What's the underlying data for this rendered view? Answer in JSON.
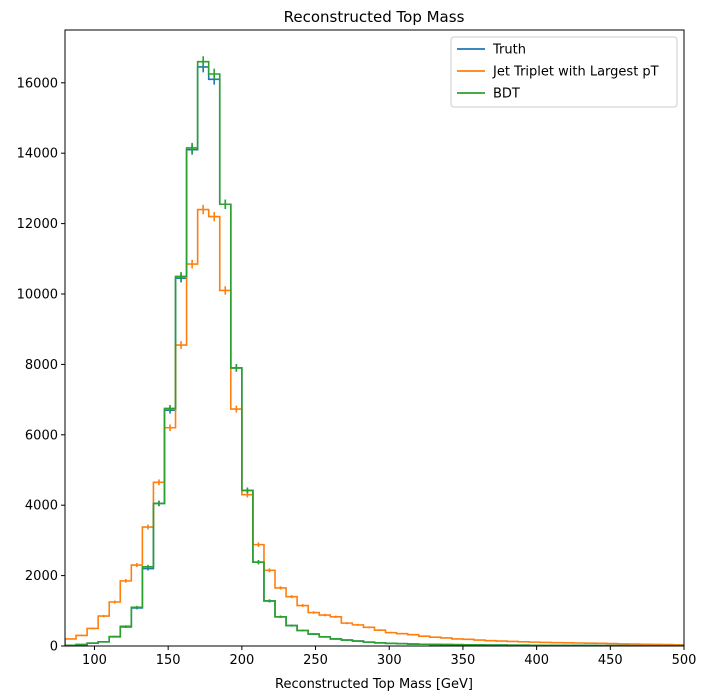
{
  "chart_data": {
    "type": "histogram",
    "title": "Reconstructed Top Mass",
    "xlabel": "Reconstructed Top Mass [GeV]",
    "ylabel": "",
    "xlim": [
      80,
      500
    ],
    "ylim": [
      0,
      17500
    ],
    "x_ticks": [
      100,
      150,
      200,
      250,
      300,
      350,
      400,
      450,
      500
    ],
    "y_ticks": [
      0,
      2000,
      4000,
      6000,
      8000,
      10000,
      12000,
      14000,
      16000
    ],
    "legend_position": "top-right",
    "bins": {
      "start": 80,
      "width": 7.5,
      "count": 56
    },
    "series": [
      {
        "name": "Truth",
        "color": "#1f77b4",
        "values": [
          20,
          40,
          80,
          120,
          260,
          540,
          1080,
          2200,
          4050,
          6700,
          10450,
          14100,
          16450,
          16100,
          12550,
          7900,
          4420,
          2380,
          1280,
          830,
          580,
          440,
          340,
          260,
          200,
          170,
          140,
          110,
          90,
          75,
          65,
          55,
          50,
          45,
          40,
          36,
          33,
          30,
          28,
          26,
          24,
          22,
          20,
          19,
          18,
          17,
          16,
          15,
          14,
          13,
          12,
          11,
          10,
          10,
          9,
          9
        ]
      },
      {
        "name": "Jet Triplet with Largest pT",
        "color": "#ff7f0e",
        "values": [
          200,
          300,
          500,
          850,
          1250,
          1850,
          2300,
          3380,
          4650,
          6200,
          8550,
          10850,
          12400,
          12200,
          10100,
          6730,
          4300,
          2880,
          2150,
          1650,
          1400,
          1150,
          950,
          880,
          830,
          650,
          600,
          530,
          450,
          380,
          350,
          320,
          280,
          250,
          230,
          200,
          190,
          170,
          150,
          140,
          130,
          120,
          110,
          100,
          95,
          90,
          85,
          80,
          75,
          70,
          60,
          55,
          50,
          45,
          40,
          35
        ]
      },
      {
        "name": "BDT",
        "color": "#2ca02c",
        "values": [
          20,
          40,
          80,
          120,
          270,
          560,
          1100,
          2250,
          4050,
          6750,
          10500,
          14150,
          16600,
          16250,
          12550,
          7900,
          4420,
          2380,
          1280,
          830,
          580,
          440,
          340,
          260,
          200,
          170,
          140,
          110,
          90,
          75,
          65,
          55,
          50,
          45,
          40,
          36,
          33,
          30,
          28,
          26,
          24,
          22,
          20,
          19,
          18,
          17,
          16,
          15,
          14,
          13,
          12,
          11,
          10,
          10,
          9,
          9
        ]
      }
    ]
  }
}
